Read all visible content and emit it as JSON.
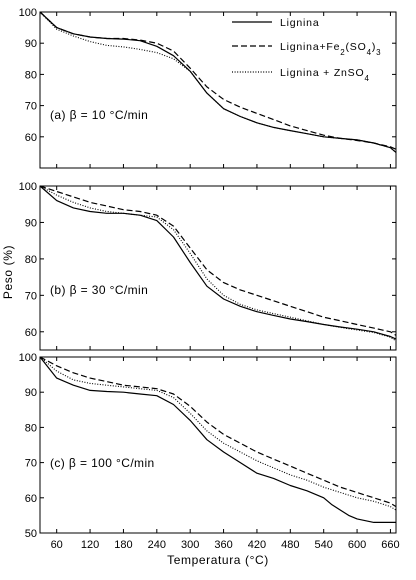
{
  "chart_data": {
    "type": "line",
    "xlabel": "Temperatura (°C)",
    "ylabel": "Peso (%)",
    "xlim": [
      30,
      670
    ],
    "x_ticks": [
      60,
      120,
      180,
      240,
      300,
      360,
      420,
      480,
      540,
      600,
      660
    ],
    "legend": {
      "placement": "top-right",
      "entries": [
        {
          "label": "Lignina",
          "style": "solid"
        },
        {
          "label": "Lignina+Fe2(SO4)3",
          "style": "dashed",
          "sub1": "2",
          "sub2": "4",
          "sub3": "3"
        },
        {
          "label": "Lignina + ZnSO4",
          "style": "dotted",
          "sub1": "4"
        }
      ]
    },
    "panels": [
      {
        "label": "(a) β = 10 °C/min",
        "ylim": [
          50,
          100
        ],
        "y_ticks": [
          60,
          70,
          80,
          90,
          100
        ],
        "series": [
          {
            "name": "Lignina",
            "style": "solid",
            "x": [
              30,
              60,
              90,
              120,
              150,
              180,
              210,
              240,
              270,
              300,
              330,
              360,
              390,
              420,
              450,
              480,
              510,
              540,
              570,
              600,
              630,
              660,
              670
            ],
            "y": [
              100,
              95,
              93,
              92,
              91.5,
              91.3,
              90.8,
              89,
              86,
              81,
              74,
              69,
              66.5,
              64.5,
              63,
              62,
              61,
              60,
              59.5,
              59,
              58,
              56.5,
              55
            ]
          },
          {
            "name": "Lignina+Fe2(SO4)3",
            "style": "dashed",
            "x": [
              30,
              60,
              90,
              120,
              150,
              180,
              210,
              240,
              270,
              300,
              330,
              360,
              390,
              420,
              450,
              480,
              510,
              540,
              570,
              600,
              630,
              660,
              670
            ],
            "y": [
              100,
              95,
              93,
              92,
              91.5,
              91.5,
              91,
              90,
              87.5,
              82,
              76,
              72,
              69.5,
              67.5,
              65.5,
              63.5,
              62,
              60.5,
              59.5,
              58.8,
              58,
              56.8,
              56
            ]
          },
          {
            "name": "Lignina + ZnSO4",
            "style": "dotted",
            "x": [
              30,
              60,
              90,
              120,
              150,
              180,
              210,
              240,
              270,
              300,
              330,
              360,
              390,
              420,
              450,
              480,
              510,
              540,
              570,
              600,
              630,
              660,
              670
            ],
            "y": [
              100,
              94.5,
              92.3,
              90.5,
              89.3,
              88.8,
              88,
              87,
              85,
              81,
              74,
              69,
              66.5,
              64.5,
              63,
              62,
              61,
              60,
              59.5,
              59,
              58,
              56.5,
              55
            ]
          }
        ]
      },
      {
        "label": "(b) β = 30 °C/min",
        "ylim": [
          55,
          100
        ],
        "y_ticks": [
          60,
          70,
          80,
          90,
          100
        ],
        "series": [
          {
            "name": "Lignina",
            "style": "solid",
            "x": [
              30,
              60,
              90,
              120,
              150,
              180,
              210,
              240,
              270,
              300,
              330,
              360,
              390,
              420,
              450,
              480,
              510,
              540,
              570,
              600,
              630,
              660,
              670
            ],
            "y": [
              100,
              96,
              94,
              93,
              92.5,
              92.5,
              92,
              90.5,
              86,
              79,
              72.5,
              69,
              67,
              65.5,
              64.5,
              63.5,
              62.8,
              62,
              61.3,
              60.7,
              60,
              58.7,
              58
            ]
          },
          {
            "name": "Lignina+Fe2(SO4)3",
            "style": "dashed",
            "x": [
              30,
              60,
              90,
              120,
              150,
              180,
              210,
              240,
              270,
              300,
              330,
              360,
              390,
              420,
              450,
              480,
              510,
              540,
              570,
              600,
              630,
              660,
              670
            ],
            "y": [
              100,
              98.5,
              97,
              95.5,
              94.5,
              93.5,
              93,
              92,
              89,
              83,
              77,
              73.5,
              71.5,
              70,
              68.5,
              67,
              65.5,
              64,
              63,
              62,
              61,
              60,
              59
            ]
          },
          {
            "name": "Lignina + ZnSO4",
            "style": "dotted",
            "x": [
              30,
              60,
              90,
              120,
              150,
              180,
              210,
              240,
              270,
              300,
              330,
              360,
              390,
              420,
              450,
              480,
              510,
              540,
              570,
              600,
              630,
              660,
              670
            ],
            "y": [
              100,
              97.5,
              95.5,
              94,
              93,
              92.5,
              92,
              91.5,
              88,
              81.5,
              74.5,
              70,
              67.5,
              66,
              65,
              64,
              63,
              62,
              61.2,
              60.5,
              59.8,
              58.5,
              57.5
            ]
          }
        ]
      },
      {
        "label": "(c) β = 100 °C/min",
        "ylim": [
          50,
          100
        ],
        "y_ticks": [
          50,
          60,
          70,
          80,
          90,
          100
        ],
        "series": [
          {
            "name": "Lignina",
            "style": "solid",
            "x": [
              30,
              60,
              90,
              120,
              150,
              180,
              210,
              240,
              270,
              300,
              330,
              360,
              390,
              420,
              450,
              480,
              510,
              540,
              555,
              570,
              585,
              600,
              630,
              660,
              670
            ],
            "y": [
              100,
              94,
              92,
              90.5,
              90.2,
              90,
              89.5,
              89,
              86.5,
              82,
              76.5,
              73,
              70,
              67,
              65.5,
              63.5,
              62,
              60,
              58,
              56.5,
              55,
              54,
              53,
              53,
              53
            ]
          },
          {
            "name": "Lignina+Fe2(SO4)3",
            "style": "dashed",
            "x": [
              30,
              60,
              90,
              120,
              150,
              180,
              210,
              240,
              270,
              300,
              330,
              360,
              390,
              420,
              450,
              480,
              510,
              540,
              570,
              600,
              630,
              660,
              670
            ],
            "y": [
              100,
              97.5,
              95.5,
              94,
              93,
              92,
              91.5,
              91,
              89.5,
              86,
              81.5,
              78,
              75.5,
              73,
              71,
              69,
              67,
              65,
              63,
              61.5,
              60,
              58.5,
              57.5
            ]
          },
          {
            "name": "Lignina + ZnSO4",
            "style": "dotted",
            "x": [
              30,
              60,
              90,
              120,
              150,
              180,
              210,
              240,
              270,
              300,
              330,
              360,
              390,
              420,
              450,
              480,
              510,
              540,
              570,
              600,
              630,
              660,
              670
            ],
            "y": [
              100,
              96,
              93.5,
              92.5,
              92,
              91.5,
              91,
              90.5,
              88.5,
              84,
              79,
              75.5,
              73,
              70.5,
              68.5,
              66.5,
              65,
              63,
              61.5,
              60,
              59,
              57.5,
              56.5
            ]
          }
        ]
      }
    ]
  }
}
